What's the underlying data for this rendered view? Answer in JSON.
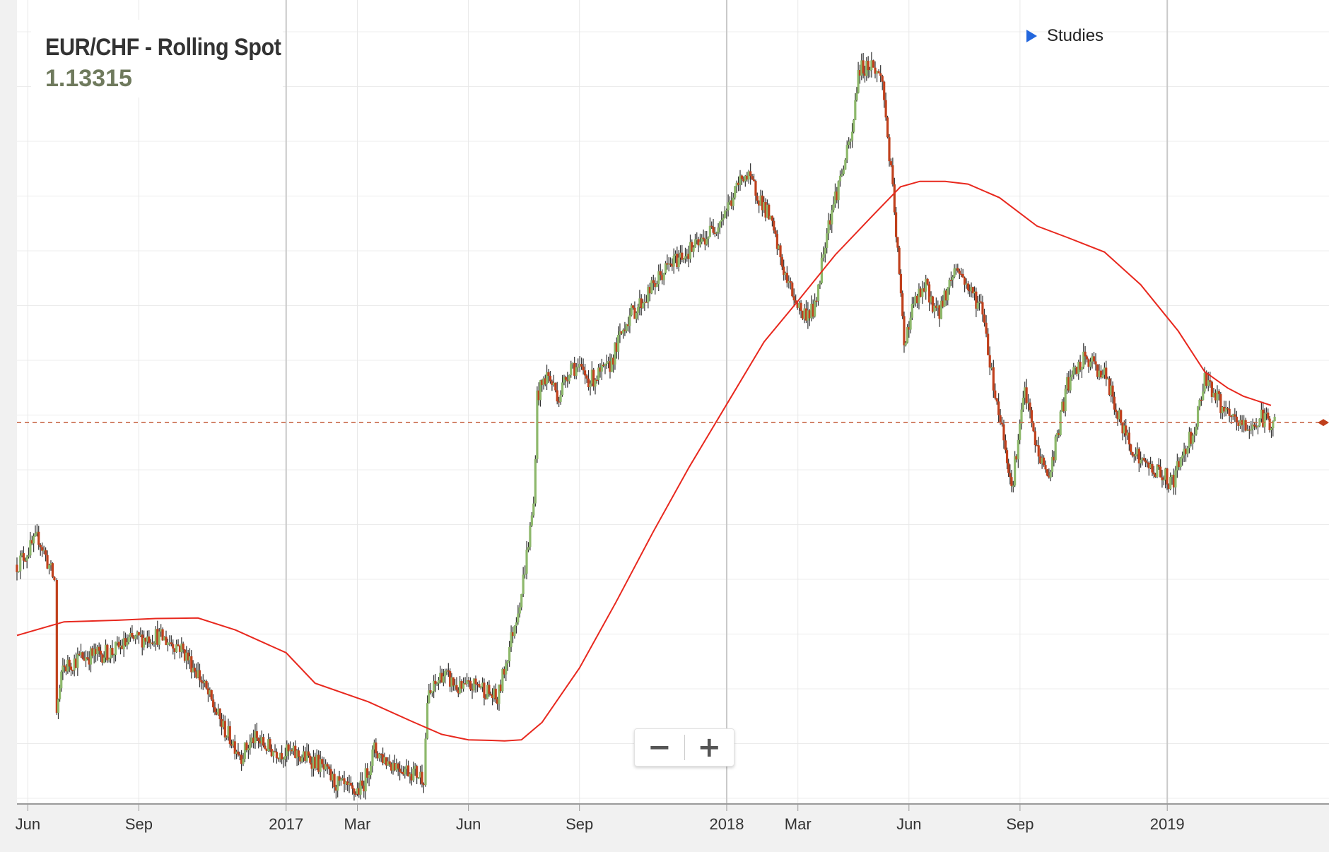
{
  "header": {
    "title": "EUR/CHF - Rolling Spot",
    "last_price": "1.13315"
  },
  "studies": {
    "label": "Studies",
    "icon": "play-triangle-icon"
  },
  "zoom": {
    "minus_label": "−",
    "plus_label": "+"
  },
  "colors": {
    "up_candle": "#8db86b",
    "down_candle": "#c0401c",
    "wick": "#333333",
    "moving_average": "#e8281e",
    "last_price_line": "#c96a4a",
    "studies_arrow": "#2266dd"
  },
  "chart_data": {
    "type": "candlestick",
    "instrument": "EUR/CHF - Rolling Spot",
    "last_value": 1.13315,
    "x_tick_labels": [
      "Jun",
      "Sep",
      "2017",
      "Mar",
      "Jun",
      "Sep",
      "2018",
      "Mar",
      "Jun",
      "Sep",
      "2019"
    ],
    "x_tick_dates": [
      "2016-06-01",
      "2016-09-01",
      "2017-01-01",
      "2017-03-01",
      "2017-06-01",
      "2017-09-01",
      "2018-01-01",
      "2018-03-01",
      "2018-06-01",
      "2018-09-01",
      "2019-01-01"
    ],
    "x_range": [
      "2016-05-23",
      "2019-05-15"
    ],
    "y_range": [
      1.063,
      1.208
    ],
    "y_axis_labels_visible": false,
    "grid": true,
    "price_series": {
      "name": "",
      "dates": [
        "2016-05-23",
        "2016-06-10",
        "2016-06-23",
        "2016-06-25",
        "2016-06-30",
        "2016-07-15",
        "2016-08-10",
        "2016-08-25",
        "2016-09-15",
        "2016-10-05",
        "2016-10-20",
        "2016-11-10",
        "2016-11-25",
        "2016-12-05",
        "2016-12-20",
        "2017-01-10",
        "2017-01-25",
        "2017-02-10",
        "2017-02-25",
        "2017-03-05",
        "2017-03-15",
        "2017-03-25",
        "2017-04-15",
        "2017-04-25",
        "2017-04-28",
        "2017-05-10",
        "2017-05-25",
        "2017-06-10",
        "2017-06-25",
        "2017-07-05",
        "2017-07-15",
        "2017-07-25",
        "2017-07-28",
        "2017-08-05",
        "2017-08-15",
        "2017-08-25",
        "2017-09-10",
        "2017-09-25",
        "2017-10-10",
        "2017-10-25",
        "2017-11-10",
        "2017-11-25",
        "2017-12-10",
        "2017-12-25",
        "2018-01-05",
        "2018-01-15",
        "2018-01-25",
        "2018-02-05",
        "2018-02-20",
        "2018-03-05",
        "2018-03-15",
        "2018-03-25",
        "2018-04-05",
        "2018-04-15",
        "2018-04-20",
        "2018-05-01",
        "2018-05-10",
        "2018-05-20",
        "2018-05-28",
        "2018-06-05",
        "2018-06-15",
        "2018-06-25",
        "2018-07-10",
        "2018-07-20",
        "2018-08-01",
        "2018-08-10",
        "2018-08-20",
        "2018-08-25",
        "2018-09-05",
        "2018-09-15",
        "2018-09-25",
        "2018-10-10",
        "2018-10-25",
        "2018-11-10",
        "2018-11-25",
        "2018-12-10",
        "2018-12-25",
        "2019-01-05",
        "2019-01-15",
        "2019-01-25",
        "2019-02-01",
        "2019-02-10",
        "2019-02-20",
        "2019-03-01",
        "2019-03-10",
        "2019-03-20",
        "2019-03-31"
      ],
      "values": [
        1.107,
        1.112,
        1.104,
        1.08,
        1.088,
        1.09,
        1.091,
        1.093,
        1.094,
        1.092,
        1.087,
        1.077,
        1.072,
        1.075,
        1.073,
        1.072,
        1.071,
        1.067,
        1.065,
        1.066,
        1.073,
        1.071,
        1.069,
        1.068,
        1.082,
        1.087,
        1.084,
        1.085,
        1.082,
        1.092,
        1.102,
        1.118,
        1.138,
        1.142,
        1.138,
        1.144,
        1.141,
        1.143,
        1.152,
        1.156,
        1.161,
        1.164,
        1.166,
        1.17,
        1.174,
        1.179,
        1.176,
        1.171,
        1.159,
        1.153,
        1.154,
        1.169,
        1.178,
        1.186,
        1.198,
        1.199,
        1.196,
        1.172,
        1.148,
        1.155,
        1.158,
        1.153,
        1.162,
        1.158,
        1.154,
        1.14,
        1.129,
        1.121,
        1.139,
        1.128,
        1.123,
        1.14,
        1.145,
        1.142,
        1.132,
        1.126,
        1.124,
        1.122,
        1.128,
        1.133,
        1.142,
        1.138,
        1.134,
        1.133,
        1.132,
        1.134,
        1.133
      ]
    },
    "moving_average": {
      "name": "",
      "dates": [
        "2016-05-23",
        "2016-07-01",
        "2016-08-15",
        "2016-09-15",
        "2016-10-20",
        "2016-11-20",
        "2017-01-01",
        "2017-01-25",
        "2017-03-10",
        "2017-04-15",
        "2017-05-10",
        "2017-06-01",
        "2017-06-20",
        "2017-07-01",
        "2017-07-15",
        "2017-08-01",
        "2017-09-01",
        "2017-10-01",
        "2017-11-01",
        "2017-12-01",
        "2018-01-01",
        "2018-02-01",
        "2018-03-01",
        "2018-04-01",
        "2018-05-01",
        "2018-05-25",
        "2018-06-10",
        "2018-07-01",
        "2018-07-20",
        "2018-08-15",
        "2018-09-15",
        "2018-10-10",
        "2018-11-10",
        "2018-12-10",
        "2019-01-10",
        "2019-02-01",
        "2019-02-20",
        "2019-03-05",
        "2019-03-28"
      ],
      "values": [
        1.094,
        1.0965,
        1.0968,
        1.0971,
        1.0972,
        1.095,
        1.0908,
        1.0852,
        1.0818,
        1.0782,
        1.0758,
        1.0748,
        1.0747,
        1.0746,
        1.0748,
        1.078,
        1.088,
        1.1,
        1.113,
        1.125,
        1.1365,
        1.148,
        1.1555,
        1.164,
        1.171,
        1.1765,
        1.1775,
        1.1775,
        1.177,
        1.1745,
        1.1693,
        1.1672,
        1.1645,
        1.1585,
        1.15,
        1.1425,
        1.1395,
        1.138,
        1.1363
      ]
    }
  }
}
